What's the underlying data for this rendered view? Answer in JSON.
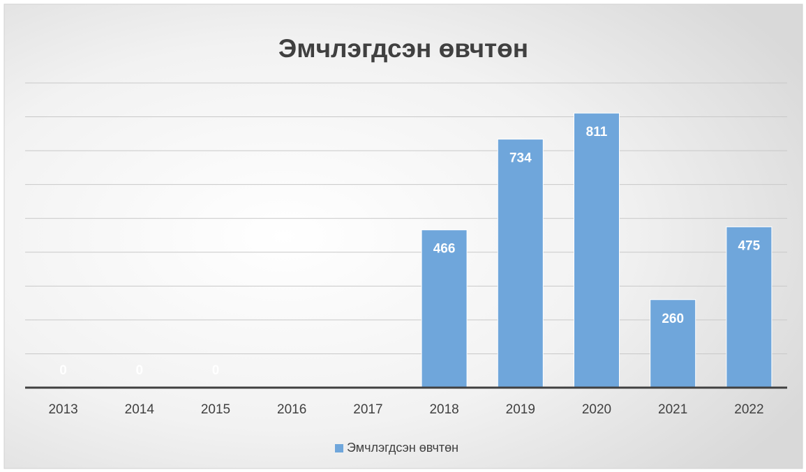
{
  "chart_data": {
    "type": "bar",
    "title": "Эмчлэгдсэн өвчтөн",
    "categories": [
      "2013",
      "2014",
      "2015",
      "2016",
      "2017",
      "2018",
      "2019",
      "2020",
      "2021",
      "2022"
    ],
    "series": [
      {
        "name": "Эмчлэгдсэн өвчтөн",
        "color": "#6fa6db",
        "values": [
          0,
          0,
          0,
          null,
          null,
          466,
          734,
          811,
          260,
          475
        ]
      }
    ],
    "ylim": [
      0,
      900
    ],
    "yticks": [
      0,
      100,
      200,
      300,
      400,
      500,
      600,
      700,
      800,
      900
    ],
    "grid": true,
    "tick_labels": false,
    "data_labels": true,
    "legend": "bottom"
  }
}
